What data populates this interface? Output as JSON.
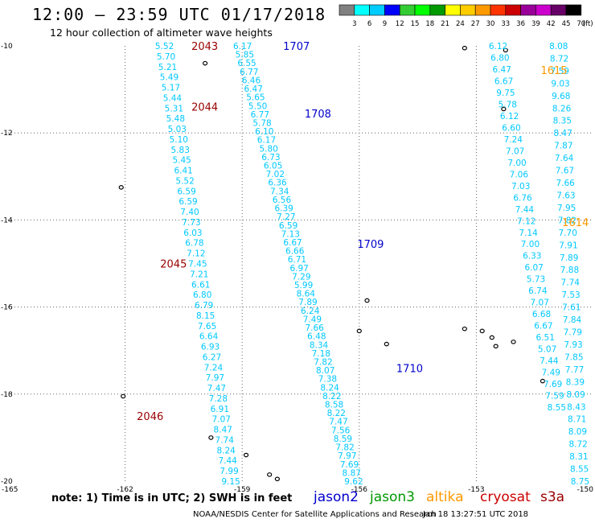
{
  "header": {
    "title": "12:00 – 23:59 UTC 01/17/2018",
    "subtitle": "12 hour collection of altimeter wave heights"
  },
  "footer": {
    "note": "note: 1) Time is in UTC; 2) SWH is in feet",
    "credit": "NOAA/NESDIS Center for Satellite Applications and Research",
    "timestamp": "Jan 18 13:27:51 UTC 2018"
  },
  "satellites": [
    {
      "name": "jason2",
      "color": "#0000cc"
    },
    {
      "name": "jason3",
      "color": "#009900"
    },
    {
      "name": "altika",
      "color": "#ff9900"
    },
    {
      "name": "cryosat",
      "color": "#cc0000"
    },
    {
      "name": "s3a",
      "color": "#990000"
    }
  ],
  "chart_data": {
    "type": "scatter",
    "xlim": [
      -165,
      -150
    ],
    "ylim": [
      -20,
      -10
    ],
    "x_ticks": [
      "-165",
      "-162",
      "-159",
      "-156",
      "-153",
      "-150"
    ],
    "y_ticks": [
      "-10",
      "-12",
      "-14",
      "-16",
      "-18",
      "-20"
    ],
    "grid": true,
    "colorbar": {
      "unit": "(ft)",
      "labels": [
        "3",
        "6",
        "9",
        "12",
        "15",
        "18",
        "21",
        "24",
        "27",
        "30",
        "33",
        "36",
        "39",
        "42",
        "45",
        "70"
      ],
      "colors": [
        "#808080",
        "#00ffff",
        "#00ccff",
        "#0000ff",
        "#33cc33",
        "#00ff00",
        "#009900",
        "#ffff00",
        "#ffcc00",
        "#ff9900",
        "#ff3300",
        "#cc0000",
        "#990099",
        "#cc00cc",
        "#660066",
        "#000000"
      ]
    },
    "value_color": "#00c8ff",
    "tracks": [
      {
        "start": [
          -160.75,
          -10
        ],
        "end": [
          -159.05,
          -20
        ],
        "values": [
          "5.52",
          "5.70",
          "5.21",
          "5.49",
          "5.17",
          "5.44",
          "5.31",
          "5.48",
          "5.03",
          "5.10",
          "5.83",
          "5.45",
          "6.41",
          "5.52",
          "6.59",
          "6.59",
          "7.40",
          "7.73",
          "6.03",
          "6.78",
          "7.12",
          "7.45",
          "7.21",
          "6.61",
          "6.80",
          "6.79",
          "8.15",
          "7.65",
          "6.64",
          "6.93",
          "6.27",
          "7.24",
          "7.97",
          "7.47",
          "7.28",
          "6.91",
          "7.07",
          "8.47",
          "7.74",
          "8.24",
          "7.44",
          "7.99",
          "9.15"
        ]
      },
      {
        "start": [
          -158.75,
          -10
        ],
        "end": [
          -155.9,
          -20
        ],
        "values": [
          "6.17",
          "5.85",
          "6.55",
          "6.77",
          "6.46",
          "6.47",
          "5.65",
          "5.50",
          "6.77",
          "5.78",
          "6.10",
          "6.17",
          "5.80",
          "6.73",
          "6.05",
          "7.02",
          "6.36",
          "7.34",
          "6.56",
          "6.39",
          "7.27",
          "6.59",
          "7.13",
          "6.67",
          "6.66",
          "6.71",
          "6.97",
          "7.29",
          "5.99",
          "8.64",
          "7.89",
          "6.24",
          "7.49",
          "7.66",
          "6.48",
          "8.34",
          "7.18",
          "7.82",
          "8.07",
          "7.38",
          "8.24",
          "8.22",
          "8.58",
          "8.22",
          "7.47",
          "7.56",
          "8.59",
          "7.82",
          "7.97",
          "7.69",
          "8.87",
          "9.62"
        ]
      },
      {
        "start": [
          -152.2,
          -10
        ],
        "end": [
          -150.7,
          -18.3
        ],
        "values": [
          "6.12",
          "6.80",
          "6.47",
          "6.67",
          "9.75",
          "5.78",
          "6.12",
          "6.60",
          "7.24",
          "7.07",
          "7.00",
          "7.06",
          "7.03",
          "6.76",
          "7.44",
          "7.12",
          "7.14",
          "7.00",
          "6.33",
          "6.07",
          "5.73",
          "6.74",
          "7.07",
          "6.68",
          "6.67",
          "6.51",
          "5.07",
          "7.44",
          "7.49",
          "7.69",
          "7.59",
          "8.55"
        ]
      },
      {
        "start": [
          -150.65,
          -10
        ],
        "end": [
          -150.1,
          -20
        ],
        "values": [
          "8.08",
          "8.72",
          "7.59",
          "9.03",
          "9.68",
          "8.26",
          "8.35",
          "8.47",
          "7.87",
          "7.64",
          "7.67",
          "7.66",
          "7.63",
          "7.95",
          "7.82",
          "7.70",
          "7.91",
          "7.89",
          "7.88",
          "7.74",
          "7.53",
          "7.61",
          "7.84",
          "7.79",
          "7.93",
          "7.85",
          "7.77",
          "8.39",
          "8.09",
          "8.43",
          "8.71",
          "8.09",
          "8.72",
          "8.31",
          "8.55",
          "8.75"
        ]
      }
    ],
    "track_labels": [
      {
        "text": "2043",
        "x": -160.3,
        "y": -10,
        "color": "#990000"
      },
      {
        "text": "2044",
        "x": -160.3,
        "y": -11.4,
        "color": "#990000"
      },
      {
        "text": "2045",
        "x": -161.1,
        "y": -15.0,
        "color": "#990000"
      },
      {
        "text": "2046",
        "x": -161.7,
        "y": -18.5,
        "color": "#990000"
      },
      {
        "text": "1707",
        "x": -157.95,
        "y": -10,
        "color": "#0000cc"
      },
      {
        "text": "1708",
        "x": -157.4,
        "y": -11.55,
        "color": "#0000cc"
      },
      {
        "text": "1709",
        "x": -156.05,
        "y": -14.55,
        "color": "#0000cc"
      },
      {
        "text": "1710",
        "x": -155.05,
        "y": -17.4,
        "color": "#0000cc"
      },
      {
        "text": "1615",
        "x": -151.35,
        "y": -10.55,
        "color": "#ff9900"
      },
      {
        "text": "1614",
        "x": -150.8,
        "y": -14.05,
        "color": "#ff9900"
      }
    ]
  }
}
